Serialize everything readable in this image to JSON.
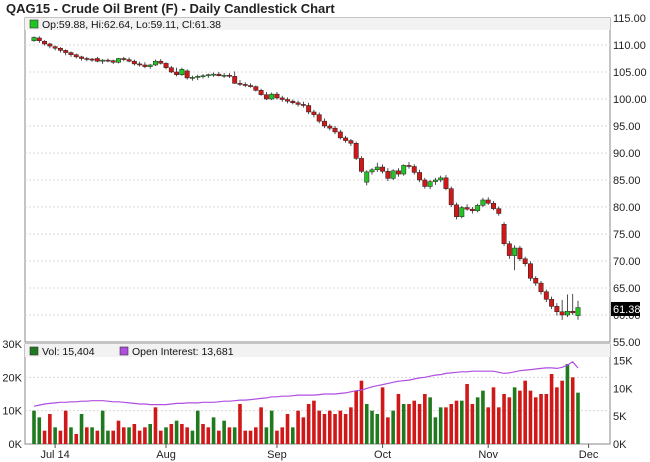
{
  "title": "QAG15 - Crude Oil Brent (F) - Daily Candlestick Chart",
  "chart_data": [
    {
      "type": "candlestick",
      "legend": "Op:59.88, Hi:62.64, Lo:59.11, Cl:61.38",
      "last_price_label": "61.38",
      "last": {
        "open": 59.88,
        "high": 62.64,
        "low": 59.11,
        "close": 61.38
      },
      "y_ticks": [
        "115.00",
        "110.00",
        "105.00",
        "100.00",
        "95.00",
        "90.00",
        "85.00",
        "80.00",
        "75.00",
        "70.00",
        "65.00",
        "60.00",
        "55.00"
      ],
      "ylim": [
        55,
        115
      ],
      "grid": true,
      "colors": {
        "up": "#22c322",
        "down": "#d01818"
      },
      "candles": [
        [
          110.8,
          111.6,
          110.6,
          111.4
        ],
        [
          111.3,
          111.6,
          110.4,
          110.8
        ],
        [
          110.7,
          110.9,
          109.9,
          110.2
        ],
        [
          110.2,
          110.4,
          109.4,
          109.8
        ],
        [
          109.7,
          109.9,
          109.0,
          109.4
        ],
        [
          109.4,
          109.6,
          108.6,
          109.0
        ],
        [
          109.0,
          109.2,
          108.1,
          108.6
        ],
        [
          108.6,
          108.8,
          107.8,
          108.2
        ],
        [
          108.2,
          108.4,
          107.5,
          107.8
        ],
        [
          107.8,
          108.0,
          107.1,
          107.5
        ],
        [
          107.5,
          107.8,
          107.0,
          107.4
        ],
        [
          107.4,
          107.6,
          106.9,
          107.2
        ],
        [
          107.5,
          107.8,
          106.8,
          107.0
        ],
        [
          107.0,
          107.4,
          106.5,
          107.2
        ],
        [
          107.2,
          107.5,
          106.8,
          107.1
        ],
        [
          107.1,
          107.3,
          106.5,
          106.8
        ],
        [
          106.8,
          107.6,
          106.6,
          107.5
        ],
        [
          107.5,
          107.8,
          107.0,
          107.3
        ],
        [
          107.3,
          107.7,
          106.8,
          107.0
        ],
        [
          107.0,
          107.3,
          106.2,
          106.5
        ],
        [
          106.5,
          106.9,
          106.0,
          106.3
        ],
        [
          106.3,
          106.8,
          105.7,
          106.0
        ],
        [
          106.0,
          106.5,
          105.6,
          106.3
        ],
        [
          106.3,
          107.3,
          106.1,
          107.0
        ],
        [
          107.0,
          107.4,
          106.4,
          106.6
        ],
        [
          106.6,
          106.8,
          105.5,
          105.8
        ],
        [
          105.8,
          106.1,
          104.8,
          105.0
        ],
        [
          105.0,
          105.8,
          104.2,
          104.5
        ],
        [
          104.5,
          105.8,
          104.3,
          105.5
        ],
        [
          105.2,
          105.5,
          103.6,
          103.9
        ],
        [
          103.9,
          104.3,
          103.4,
          104.0
        ],
        [
          104.0,
          104.5,
          103.5,
          104.2
        ],
        [
          104.2,
          104.6,
          103.8,
          104.3
        ],
        [
          104.3,
          104.7,
          103.9,
          104.5
        ],
        [
          104.5,
          104.9,
          104.1,
          104.6
        ],
        [
          104.6,
          105.0,
          104.2,
          104.3
        ],
        [
          104.3,
          104.8,
          103.9,
          104.4
        ],
        [
          104.4,
          104.8,
          103.9,
          104.2
        ],
        [
          104.2,
          105.1,
          102.8,
          102.9
        ],
        [
          102.9,
          103.5,
          102.4,
          102.7
        ],
        [
          102.7,
          103.1,
          102.2,
          102.5
        ],
        [
          102.5,
          102.9,
          102.1,
          102.3
        ],
        [
          102.3,
          102.5,
          101.4,
          101.6
        ],
        [
          101.6,
          101.9,
          100.6,
          100.8
        ],
        [
          100.8,
          101.3,
          99.8,
          100.0
        ],
        [
          100.0,
          101.2,
          99.8,
          100.9
        ],
        [
          100.9,
          101.3,
          99.9,
          100.2
        ],
        [
          100.2,
          100.6,
          99.5,
          99.9
        ],
        [
          99.9,
          100.3,
          99.2,
          99.6
        ],
        [
          99.6,
          99.9,
          99.0,
          99.3
        ],
        [
          99.3,
          99.7,
          98.6,
          99.0
        ],
        [
          99.0,
          99.5,
          98.4,
          98.8
        ],
        [
          98.8,
          99.3,
          97.2,
          97.6
        ],
        [
          97.6,
          98.0,
          96.6,
          97.1
        ],
        [
          97.1,
          97.5,
          95.5,
          95.9
        ],
        [
          95.9,
          96.4,
          94.6,
          95.0
        ],
        [
          95.0,
          95.4,
          94.2,
          94.6
        ],
        [
          94.6,
          95.0,
          93.5,
          93.9
        ],
        [
          93.9,
          94.3,
          92.5,
          92.8
        ],
        [
          92.8,
          93.2,
          91.9,
          92.3
        ],
        [
          92.3,
          92.6,
          91.3,
          91.8
        ],
        [
          91.8,
          92.1,
          88.7,
          89.0
        ],
        [
          89.0,
          89.4,
          86.3,
          86.6
        ],
        [
          84.6,
          86.8,
          84.0,
          86.5
        ],
        [
          86.5,
          87.2,
          86.0,
          86.9
        ],
        [
          86.9,
          88.2,
          86.5,
          87.4
        ],
        [
          87.4,
          87.9,
          86.2,
          86.6
        ],
        [
          86.6,
          87.2,
          84.8,
          85.3
        ],
        [
          85.3,
          87.0,
          85.0,
          86.7
        ],
        [
          86.7,
          87.2,
          85.6,
          86.1
        ],
        [
          86.1,
          87.9,
          85.8,
          87.7
        ],
        [
          87.7,
          88.3,
          87.1,
          87.5
        ],
        [
          87.5,
          87.9,
          86.0,
          86.4
        ],
        [
          86.4,
          86.9,
          84.6,
          85.0
        ],
        [
          85.0,
          85.4,
          83.4,
          83.8
        ],
        [
          83.8,
          85.0,
          83.3,
          84.7
        ],
        [
          84.7,
          85.4,
          84.1,
          85.0
        ],
        [
          85.0,
          85.8,
          84.6,
          85.4
        ],
        [
          85.4,
          85.9,
          83.1,
          83.4
        ],
        [
          83.4,
          83.8,
          80.0,
          80.4
        ],
        [
          80.4,
          80.8,
          77.7,
          78.2
        ],
        [
          78.2,
          80.2,
          77.9,
          79.9
        ],
        [
          79.9,
          80.5,
          79.3,
          79.6
        ],
        [
          79.6,
          80.0,
          78.8,
          79.3
        ],
        [
          79.3,
          80.6,
          79.0,
          80.3
        ],
        [
          80.3,
          81.7,
          80.0,
          81.3
        ],
        [
          81.3,
          81.8,
          80.4,
          80.7
        ],
        [
          80.7,
          81.1,
          79.4,
          79.7
        ],
        [
          79.7,
          80.1,
          78.4,
          78.8
        ],
        [
          76.8,
          77.2,
          72.8,
          73.2
        ],
        [
          73.2,
          73.7,
          70.4,
          71.0
        ],
        [
          71.0,
          72.9,
          68.3,
          72.4
        ],
        [
          72.4,
          72.8,
          70.0,
          70.4
        ],
        [
          70.4,
          70.8,
          69.0,
          69.5
        ],
        [
          69.5,
          69.9,
          66.3,
          66.8
        ],
        [
          66.8,
          67.2,
          65.4,
          65.9
        ],
        [
          65.9,
          66.3,
          63.8,
          64.3
        ],
        [
          64.3,
          64.7,
          62.4,
          62.9
        ],
        [
          62.9,
          63.4,
          61.1,
          61.6
        ],
        [
          61.6,
          62.2,
          59.9,
          60.6
        ],
        [
          60.6,
          62.8,
          59.1,
          60.0
        ],
        [
          60.0,
          63.8,
          59.6,
          60.7
        ],
        [
          60.7,
          63.9,
          60.0,
          60.4
        ],
        [
          59.88,
          62.64,
          59.11,
          61.38
        ]
      ]
    },
    {
      "type": "bar",
      "legend_volume": "Vol: 15,404",
      "legend_oi": "Open Interest: 13,681",
      "y_ticks_left": [
        "30K",
        "20K",
        "10K",
        "0K"
      ],
      "y_ticks_right": [
        "15K",
        "10K",
        "5K",
        "0K"
      ],
      "vol_ylim": [
        0,
        30000
      ],
      "oi_ylim": [
        0,
        18000
      ],
      "x_ticks": [
        {
          "label": "Jul 14",
          "index": 4
        },
        {
          "label": "Aug",
          "index": 25
        },
        {
          "label": "Sep",
          "index": 46
        },
        {
          "label": "Oct",
          "index": 66
        },
        {
          "label": "Nov",
          "index": 86
        },
        {
          "label": "Dec",
          "index": 105
        }
      ],
      "volume": [
        10000,
        8000,
        4000,
        9000,
        5000,
        4000,
        10000,
        5000,
        3000,
        9000,
        5000,
        5000,
        4000,
        10000,
        4000,
        4000,
        7000,
        5000,
        5000,
        6000,
        4000,
        5000,
        6000,
        11000,
        4000,
        5000,
        6000,
        7000,
        6000,
        5000,
        4000,
        10000,
        6000,
        5000,
        8000,
        4000,
        7000,
        5000,
        5000,
        12000,
        4000,
        4000,
        5000,
        11000,
        5000,
        10000,
        4000,
        5000,
        9000,
        5000,
        10000,
        8000,
        12000,
        13000,
        10000,
        9000,
        10000,
        9000,
        10000,
        9000,
        11000,
        16000,
        19000,
        12000,
        10000,
        9000,
        17000,
        8000,
        10000,
        15000,
        12000,
        12000,
        13000,
        12000,
        15000,
        14000,
        8000,
        11000,
        11000,
        12000,
        13000,
        13000,
        18000,
        12000,
        14000,
        16000,
        11000,
        17000,
        11000,
        15000,
        14000,
        17000,
        16000,
        19000,
        16000,
        14000,
        15000,
        15000,
        21000,
        17000,
        19000,
        24000,
        20000,
        15404
      ],
      "open_interest": [
        6800,
        7000,
        7200,
        7300,
        7400,
        7500,
        7500,
        7600,
        7600,
        7700,
        7700,
        7800,
        7800,
        7800,
        7700,
        7600,
        7600,
        7500,
        7400,
        7300,
        7200,
        7200,
        7100,
        7100,
        7100,
        7100,
        7200,
        7300,
        7300,
        7400,
        7400,
        7400,
        7500,
        7500,
        7500,
        7600,
        7700,
        7700,
        7800,
        7900,
        7900,
        8000,
        8100,
        8200,
        8300,
        8500,
        8500,
        8600,
        8600,
        8700,
        8800,
        8800,
        8800,
        8800,
        8900,
        9000,
        9000,
        9000,
        9100,
        9200,
        9400,
        9600,
        9700,
        10000,
        10300,
        10500,
        10700,
        10900,
        11100,
        11300,
        11400,
        11500,
        11700,
        11900,
        12000,
        12200,
        12400,
        12500,
        12700,
        12800,
        12900,
        13000,
        13000,
        13100,
        13100,
        13100,
        13100,
        13100,
        12900,
        12700,
        12800,
        13000,
        13200,
        13300,
        13400,
        13500,
        13600,
        13700,
        13700,
        13600,
        13800,
        14200,
        14800,
        13681
      ],
      "up_flags": [
        1,
        1,
        0,
        0,
        1,
        0,
        0,
        1,
        0,
        1,
        0,
        1,
        0,
        1,
        1,
        0,
        0,
        0,
        1,
        0,
        0,
        0,
        1,
        0,
        0,
        1,
        0,
        1,
        0,
        0,
        1,
        1,
        0,
        0,
        1,
        0,
        1,
        0,
        1,
        0,
        0,
        0,
        0,
        0,
        1,
        1,
        0,
        0,
        0,
        1,
        0,
        0,
        0,
        0,
        0,
        0,
        0,
        0,
        0,
        0,
        0,
        0,
        0,
        1,
        1,
        1,
        0,
        0,
        1,
        0,
        1,
        0,
        0,
        0,
        0,
        1,
        1,
        1,
        0,
        0,
        0,
        1,
        0,
        0,
        1,
        1,
        0,
        0,
        0,
        0,
        0,
        1,
        0,
        0,
        0,
        0,
        0,
        0,
        0,
        0,
        0,
        1,
        0,
        1
      ],
      "colors": {
        "up": "#1f7a1f",
        "down": "#d01818",
        "oi": "#b04ee0"
      }
    }
  ]
}
